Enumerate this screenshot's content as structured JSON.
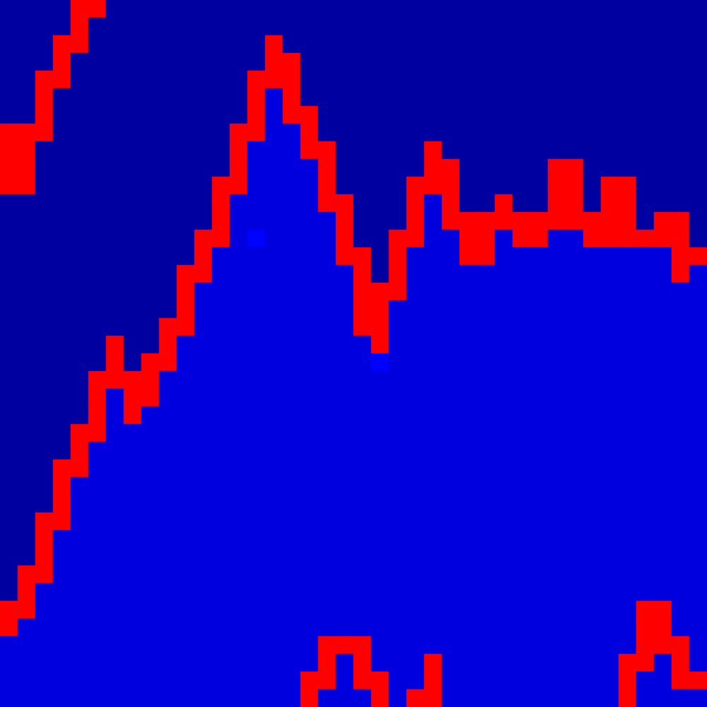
{
  "chart_data": {
    "type": "heatmap",
    "tick_labels": false,
    "zlim": [
      0,
      20
    ],
    "cells": [
      [
        1,
        1,
        1,
        1,
        16,
        16,
        1,
        1,
        1,
        1,
        1,
        1,
        1,
        1,
        1,
        1,
        1,
        1,
        1,
        1,
        1,
        1,
        1,
        1,
        1,
        1,
        1,
        1,
        1,
        1,
        1,
        1,
        1,
        1,
        1,
        1,
        1,
        1,
        1,
        1
      ],
      [
        1,
        1,
        1,
        1,
        16,
        1,
        1,
        1,
        1,
        1,
        1,
        1,
        1,
        1,
        1,
        1,
        1,
        1,
        1,
        1,
        1,
        1,
        1,
        1,
        1,
        1,
        1,
        1,
        1,
        1,
        1,
        1,
        1,
        1,
        1,
        1,
        1,
        1,
        1,
        1
      ],
      [
        1,
        1,
        1,
        16,
        16,
        1,
        1,
        1,
        1,
        1,
        1,
        1,
        1,
        1,
        1,
        16,
        1,
        1,
        1,
        1,
        1,
        1,
        1,
        1,
        1,
        1,
        1,
        1,
        1,
        1,
        1,
        1,
        1,
        1,
        1,
        1,
        1,
        1,
        1,
        1
      ],
      [
        1,
        1,
        1,
        16,
        1,
        1,
        1,
        1,
        1,
        1,
        1,
        1,
        1,
        1,
        1,
        16,
        16,
        1,
        1,
        1,
        1,
        1,
        1,
        1,
        1,
        1,
        1,
        1,
        1,
        1,
        1,
        1,
        1,
        1,
        1,
        1,
        1,
        1,
        1,
        1
      ],
      [
        1,
        1,
        16,
        16,
        1,
        1,
        1,
        1,
        1,
        1,
        1,
        1,
        1,
        1,
        16,
        16,
        16,
        1,
        1,
        1,
        1,
        1,
        1,
        1,
        1,
        1,
        1,
        1,
        1,
        1,
        1,
        1,
        1,
        1,
        1,
        1,
        1,
        1,
        1,
        1
      ],
      [
        1,
        1,
        16,
        1,
        1,
        1,
        1,
        1,
        1,
        1,
        1,
        1,
        1,
        1,
        16,
        3,
        16,
        1,
        1,
        1,
        1,
        1,
        1,
        1,
        1,
        1,
        1,
        1,
        1,
        1,
        1,
        1,
        1,
        1,
        1,
        1,
        1,
        1,
        1,
        1
      ],
      [
        1,
        1,
        16,
        1,
        1,
        1,
        1,
        1,
        1,
        1,
        1,
        1,
        1,
        1,
        16,
        3,
        16,
        16,
        1,
        1,
        1,
        1,
        1,
        1,
        1,
        1,
        1,
        1,
        1,
        1,
        1,
        1,
        1,
        1,
        1,
        1,
        1,
        1,
        1,
        1
      ],
      [
        16,
        16,
        16,
        1,
        1,
        1,
        1,
        1,
        1,
        1,
        1,
        1,
        1,
        16,
        16,
        3,
        3,
        16,
        1,
        1,
        1,
        1,
        1,
        1,
        1,
        1,
        1,
        1,
        1,
        1,
        1,
        1,
        1,
        1,
        1,
        1,
        1,
        1,
        1,
        1
      ],
      [
        16,
        16,
        1,
        1,
        1,
        1,
        1,
        1,
        1,
        1,
        1,
        1,
        1,
        16,
        3,
        3,
        3,
        16,
        16,
        1,
        1,
        1,
        1,
        1,
        16,
        1,
        1,
        1,
        1,
        1,
        1,
        1,
        1,
        1,
        1,
        1,
        1,
        1,
        1,
        1
      ],
      [
        16,
        16,
        1,
        1,
        1,
        1,
        1,
        1,
        1,
        1,
        1,
        1,
        1,
        16,
        3,
        3,
        3,
        3,
        16,
        1,
        1,
        1,
        1,
        1,
        16,
        16,
        1,
        1,
        1,
        1,
        1,
        16,
        16,
        1,
        1,
        1,
        1,
        1,
        1,
        1
      ],
      [
        16,
        16,
        1,
        1,
        1,
        1,
        1,
        1,
        1,
        1,
        1,
        1,
        16,
        16,
        3,
        3,
        3,
        3,
        16,
        1,
        1,
        1,
        1,
        16,
        16,
        16,
        1,
        1,
        1,
        1,
        1,
        16,
        16,
        1,
        16,
        16,
        1,
        1,
        1,
        1
      ],
      [
        1,
        1,
        1,
        1,
        1,
        1,
        1,
        1,
        1,
        1,
        1,
        1,
        16,
        3,
        3,
        3,
        3,
        3,
        16,
        16,
        1,
        1,
        1,
        16,
        3,
        16,
        1,
        1,
        16,
        1,
        1,
        16,
        16,
        1,
        16,
        16,
        1,
        1,
        1,
        1
      ],
      [
        1,
        1,
        1,
        1,
        1,
        1,
        1,
        1,
        1,
        1,
        1,
        1,
        16,
        3,
        3,
        3,
        3,
        3,
        3,
        16,
        1,
        1,
        1,
        16,
        3,
        16,
        16,
        16,
        16,
        16,
        16,
        16,
        16,
        16,
        16,
        16,
        1,
        16,
        16,
        1
      ],
      [
        1,
        1,
        1,
        1,
        1,
        1,
        1,
        1,
        1,
        1,
        1,
        16,
        16,
        3,
        4,
        3,
        3,
        3,
        3,
        16,
        1,
        1,
        16,
        16,
        3,
        3,
        16,
        16,
        3,
        16,
        16,
        3,
        3,
        16,
        16,
        16,
        16,
        16,
        16,
        1
      ],
      [
        1,
        1,
        1,
        1,
        1,
        1,
        1,
        1,
        1,
        1,
        1,
        16,
        3,
        3,
        3,
        3,
        3,
        3,
        3,
        16,
        16,
        1,
        16,
        3,
        3,
        3,
        16,
        16,
        3,
        3,
        3,
        3,
        3,
        3,
        3,
        3,
        3,
        3,
        16,
        16
      ],
      [
        1,
        1,
        1,
        1,
        1,
        1,
        1,
        1,
        1,
        1,
        16,
        16,
        3,
        3,
        3,
        3,
        3,
        3,
        3,
        3,
        16,
        1,
        16,
        3,
        3,
        3,
        3,
        3,
        3,
        3,
        3,
        3,
        3,
        3,
        3,
        3,
        3,
        3,
        16,
        3
      ],
      [
        1,
        1,
        1,
        1,
        1,
        1,
        1,
        1,
        1,
        1,
        16,
        3,
        3,
        3,
        3,
        3,
        3,
        3,
        3,
        3,
        16,
        16,
        16,
        3,
        3,
        3,
        3,
        3,
        3,
        3,
        3,
        3,
        3,
        3,
        3,
        3,
        3,
        3,
        3,
        3
      ],
      [
        1,
        1,
        1,
        1,
        1,
        1,
        1,
        1,
        1,
        1,
        16,
        3,
        3,
        3,
        3,
        3,
        3,
        3,
        3,
        3,
        16,
        16,
        3,
        3,
        3,
        3,
        3,
        3,
        3,
        3,
        3,
        3,
        3,
        3,
        3,
        3,
        3,
        3,
        3,
        3
      ],
      [
        1,
        1,
        1,
        1,
        1,
        1,
        1,
        1,
        1,
        16,
        16,
        3,
        3,
        3,
        3,
        3,
        3,
        3,
        3,
        3,
        16,
        16,
        3,
        3,
        3,
        3,
        3,
        3,
        3,
        3,
        3,
        3,
        3,
        3,
        3,
        3,
        3,
        3,
        3,
        3
      ],
      [
        1,
        1,
        1,
        1,
        1,
        1,
        16,
        1,
        1,
        16,
        3,
        3,
        3,
        3,
        3,
        3,
        3,
        3,
        3,
        3,
        3,
        16,
        3,
        3,
        3,
        3,
        3,
        3,
        3,
        3,
        3,
        3,
        3,
        3,
        3,
        3,
        3,
        3,
        3,
        3
      ],
      [
        1,
        1,
        1,
        1,
        1,
        1,
        16,
        1,
        16,
        16,
        3,
        3,
        3,
        3,
        3,
        3,
        3,
        3,
        3,
        3,
        3,
        4,
        3,
        3,
        3,
        3,
        3,
        3,
        3,
        3,
        3,
        3,
        3,
        3,
        3,
        3,
        3,
        3,
        3,
        3
      ],
      [
        1,
        1,
        1,
        1,
        1,
        16,
        16,
        16,
        16,
        3,
        3,
        3,
        3,
        3,
        3,
        3,
        3,
        3,
        3,
        3,
        3,
        3,
        3,
        3,
        3,
        3,
        3,
        3,
        3,
        3,
        3,
        3,
        3,
        3,
        3,
        3,
        3,
        3,
        3,
        3
      ],
      [
        1,
        1,
        1,
        1,
        1,
        16,
        3,
        16,
        16,
        3,
        3,
        3,
        3,
        3,
        3,
        3,
        3,
        3,
        3,
        3,
        3,
        3,
        3,
        3,
        3,
        3,
        3,
        3,
        3,
        3,
        3,
        3,
        3,
        3,
        3,
        3,
        3,
        3,
        3,
        3
      ],
      [
        1,
        1,
        1,
        1,
        1,
        16,
        3,
        16,
        3,
        3,
        3,
        3,
        3,
        3,
        3,
        3,
        3,
        3,
        3,
        3,
        3,
        3,
        3,
        3,
        3,
        3,
        3,
        3,
        3,
        3,
        3,
        3,
        3,
        3,
        3,
        3,
        3,
        3,
        3,
        3
      ],
      [
        1,
        1,
        1,
        1,
        16,
        16,
        3,
        3,
        3,
        3,
        3,
        3,
        3,
        3,
        3,
        3,
        3,
        3,
        3,
        3,
        3,
        3,
        3,
        3,
        3,
        3,
        3,
        3,
        3,
        3,
        3,
        3,
        3,
        3,
        3,
        3,
        3,
        3,
        3,
        3
      ],
      [
        1,
        1,
        1,
        1,
        16,
        3,
        3,
        3,
        3,
        3,
        3,
        3,
        3,
        3,
        3,
        3,
        3,
        3,
        3,
        3,
        3,
        3,
        3,
        3,
        3,
        3,
        3,
        3,
        3,
        3,
        3,
        3,
        3,
        3,
        3,
        3,
        3,
        3,
        3,
        3
      ],
      [
        1,
        1,
        1,
        16,
        16,
        3,
        3,
        3,
        3,
        3,
        3,
        3,
        3,
        3,
        3,
        3,
        3,
        3,
        3,
        3,
        3,
        3,
        3,
        3,
        3,
        3,
        3,
        3,
        3,
        3,
        3,
        3,
        3,
        3,
        3,
        3,
        3,
        3,
        3,
        3
      ],
      [
        1,
        1,
        1,
        16,
        3,
        3,
        3,
        3,
        3,
        3,
        3,
        3,
        3,
        3,
        3,
        3,
        3,
        3,
        3,
        3,
        3,
        3,
        3,
        3,
        3,
        3,
        3,
        3,
        3,
        3,
        3,
        3,
        3,
        3,
        3,
        3,
        3,
        3,
        3,
        3
      ],
      [
        1,
        1,
        1,
        16,
        3,
        3,
        3,
        3,
        3,
        3,
        3,
        3,
        3,
        3,
        3,
        3,
        3,
        3,
        3,
        3,
        3,
        3,
        3,
        3,
        3,
        3,
        3,
        3,
        3,
        3,
        3,
        3,
        3,
        3,
        3,
        3,
        3,
        3,
        3,
        3
      ],
      [
        1,
        1,
        16,
        16,
        3,
        3,
        3,
        3,
        3,
        3,
        3,
        3,
        3,
        3,
        3,
        3,
        3,
        3,
        3,
        3,
        3,
        3,
        3,
        3,
        3,
        3,
        3,
        3,
        3,
        3,
        3,
        3,
        3,
        3,
        3,
        3,
        3,
        3,
        3,
        3
      ],
      [
        1,
        1,
        16,
        3,
        3,
        3,
        3,
        3,
        3,
        3,
        3,
        3,
        3,
        3,
        3,
        3,
        3,
        3,
        3,
        3,
        3,
        3,
        3,
        3,
        3,
        3,
        3,
        3,
        3,
        3,
        3,
        3,
        3,
        3,
        3,
        3,
        3,
        3,
        3,
        3
      ],
      [
        1,
        1,
        16,
        3,
        3,
        3,
        3,
        3,
        3,
        3,
        3,
        3,
        3,
        3,
        3,
        3,
        3,
        3,
        3,
        3,
        3,
        3,
        3,
        3,
        3,
        3,
        3,
        3,
        3,
        3,
        3,
        3,
        3,
        3,
        3,
        3,
        3,
        3,
        3,
        3
      ],
      [
        1,
        16,
        16,
        3,
        3,
        3,
        3,
        3,
        3,
        3,
        3,
        3,
        3,
        3,
        3,
        3,
        3,
        3,
        3,
        3,
        3,
        3,
        3,
        3,
        3,
        3,
        3,
        3,
        3,
        3,
        3,
        3,
        3,
        3,
        3,
        3,
        3,
        3,
        3,
        3
      ],
      [
        1,
        16,
        3,
        3,
        3,
        3,
        3,
        3,
        3,
        3,
        3,
        3,
        3,
        3,
        3,
        3,
        3,
        3,
        3,
        3,
        3,
        3,
        3,
        3,
        3,
        3,
        3,
        3,
        3,
        3,
        3,
        3,
        3,
        3,
        3,
        3,
        3,
        3,
        3,
        3
      ],
      [
        16,
        16,
        3,
        3,
        3,
        3,
        3,
        3,
        3,
        3,
        3,
        3,
        3,
        3,
        3,
        3,
        3,
        3,
        3,
        3,
        3,
        3,
        3,
        3,
        3,
        3,
        3,
        3,
        3,
        3,
        3,
        3,
        3,
        3,
        3,
        3,
        16,
        16,
        3,
        3
      ],
      [
        16,
        3,
        3,
        3,
        3,
        3,
        3,
        3,
        3,
        3,
        3,
        3,
        3,
        3,
        3,
        3,
        3,
        3,
        3,
        3,
        3,
        3,
        3,
        3,
        3,
        3,
        3,
        3,
        3,
        3,
        3,
        3,
        3,
        3,
        3,
        3,
        16,
        16,
        3,
        3
      ],
      [
        3,
        3,
        3,
        3,
        3,
        3,
        3,
        3,
        3,
        3,
        3,
        3,
        3,
        3,
        3,
        3,
        3,
        3,
        16,
        16,
        16,
        3,
        3,
        3,
        3,
        3,
        3,
        3,
        3,
        3,
        3,
        3,
        3,
        3,
        3,
        3,
        16,
        16,
        16,
        3
      ],
      [
        3,
        3,
        3,
        3,
        3,
        3,
        3,
        3,
        3,
        3,
        3,
        3,
        3,
        3,
        3,
        3,
        3,
        3,
        16,
        3,
        16,
        3,
        3,
        3,
        16,
        3,
        3,
        3,
        3,
        3,
        3,
        3,
        3,
        3,
        3,
        16,
        16,
        3,
        16,
        3
      ],
      [
        3,
        3,
        3,
        3,
        3,
        3,
        3,
        3,
        3,
        3,
        3,
        3,
        3,
        3,
        3,
        3,
        3,
        16,
        16,
        3,
        16,
        16,
        3,
        3,
        16,
        3,
        3,
        3,
        3,
        3,
        3,
        3,
        3,
        3,
        3,
        16,
        3,
        3,
        16,
        16
      ],
      [
        3,
        3,
        3,
        3,
        3,
        3,
        3,
        3,
        3,
        3,
        3,
        3,
        3,
        3,
        3,
        3,
        3,
        16,
        3,
        3,
        3,
        16,
        3,
        16,
        16,
        3,
        3,
        3,
        3,
        3,
        3,
        3,
        3,
        3,
        3,
        16,
        3,
        3,
        3,
        3
      ]
    ]
  }
}
